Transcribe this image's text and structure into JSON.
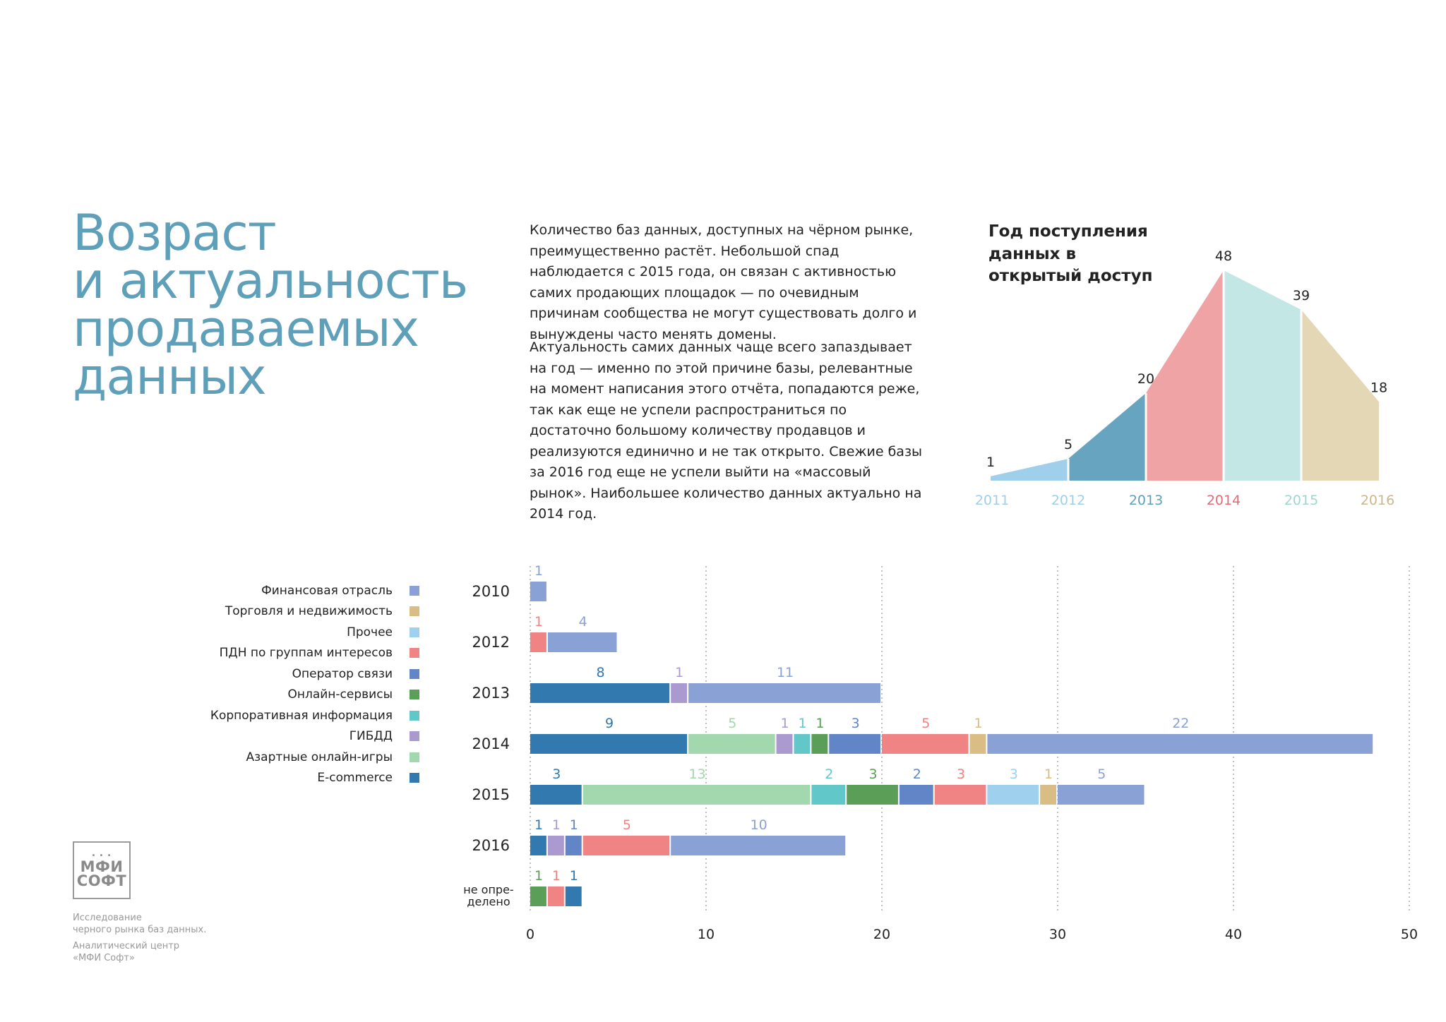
{
  "heading": {
    "line1": "Возраст",
    "line2": "и актуальность",
    "line3": "продаваемых",
    "line4": "данных"
  },
  "text": {
    "p1": "Количество баз данных, доступных на чёрном рынке, преимущественно растёт. Небольшой спад наблюдается с 2015 года, он связан с активностью самих продающих площадок — по очевидным причинам сообщества не могут существовать долго и вынуждены часто менять домены.",
    "p2": "Актуальность самих данных чаще всего запаздывает на год — именно по этой причине базы, релевантные на момент написания этого отчёта, попадаются реже, так как еще не успели распространиться по достаточно большому количеству продавцов и реализуются единично и не так открыто. Свежие базы за 2016 год еще не успели выйти на «массовый рынок». Наибольшее количество данных актуально на 2014 год."
  },
  "footer": {
    "logo_line1": "МФИ",
    "logo_line2": "СОФТ",
    "line1": "Исследование",
    "line2": "черного рынка баз данных.",
    "line3": "Аналитический центр",
    "line4": "«МФИ Софт»"
  },
  "chart_data": [
    {
      "type": "area",
      "title": "Год поступления данных в открытый доступ",
      "x": [
        "2011",
        "2012",
        "2013",
        "2014",
        "2015",
        "2016"
      ],
      "values": [
        1,
        5,
        20,
        48,
        39,
        18
      ],
      "colors": [
        "#9fcfea",
        "#66a4c0",
        "#f0a3a5",
        "#c3e7e5",
        "#e4d7b6"
      ],
      "label_colors": [
        "#9fcfea",
        "#9fcfea",
        "#5e9fba",
        "#e06c7a",
        "#9fd6cf",
        "#cbb78e"
      ],
      "grid": false
    },
    {
      "type": "bar",
      "orientation": "horizontal",
      "stacked": true,
      "categories": [
        "2010",
        "2012",
        "2013",
        "2014",
        "2015",
        "2016",
        "не опре-\nделено"
      ],
      "xlim": [
        0,
        50
      ],
      "xticks": [
        0,
        10,
        20,
        30,
        40,
        50
      ],
      "grid": true,
      "legend_position": "left",
      "legend": [
        {
          "name": "Финансовая отрасль",
          "color": "#8aa1d5"
        },
        {
          "name": "Торговля и недвижимость",
          "color": "#d9bd84"
        },
        {
          "name": "Прочее",
          "color": "#9fd0ee"
        },
        {
          "name": "ПДН по группам интересов",
          "color": "#f08383"
        },
        {
          "name": "Оператор связи",
          "color": "#6185c6"
        },
        {
          "name": "Онлайн-сервисы",
          "color": "#5b9e58"
        },
        {
          "name": "Корпоративная информация",
          "color": "#62c7c9"
        },
        {
          "name": "ГИБДД",
          "color": "#aa9ad0"
        },
        {
          "name": "Азартные онлайн-игры",
          "color": "#a3d7ad"
        },
        {
          "name": "E-commerce",
          "color": "#3279b0"
        }
      ],
      "rows": [
        {
          "segments": [
            {
              "series": "Финансовая отрасль",
              "value": 1
            }
          ]
        },
        {
          "segments": [
            {
              "series": "ПДН по группам интересов",
              "value": 1
            },
            {
              "series": "Финансовая отрасль",
              "value": 4
            }
          ]
        },
        {
          "segments": [
            {
              "series": "E-commerce",
              "value": 8
            },
            {
              "series": "ГИБДД",
              "value": 1
            },
            {
              "series": "Финансовая отрасль",
              "value": 11
            }
          ]
        },
        {
          "segments": [
            {
              "series": "E-commerce",
              "value": 9
            },
            {
              "series": "Азартные онлайн-игры",
              "value": 5
            },
            {
              "series": "ГИБДД",
              "value": 1
            },
            {
              "series": "Корпоративная информация",
              "value": 1
            },
            {
              "series": "Онлайн-сервисы",
              "value": 1
            },
            {
              "series": "Оператор связи",
              "value": 3
            },
            {
              "series": "ПДН по группам интересов",
              "value": 5
            },
            {
              "series": "Торговля и недвижимость",
              "value": 1
            },
            {
              "series": "Финансовая отрасль",
              "value": 22
            }
          ]
        },
        {
          "segments": [
            {
              "series": "E-commerce",
              "value": 3
            },
            {
              "series": "Азартные онлайн-игры",
              "value": 13
            },
            {
              "series": "Корпоративная информация",
              "value": 2
            },
            {
              "series": "Онлайн-сервисы",
              "value": 3
            },
            {
              "series": "Оператор связи",
              "value": 2
            },
            {
              "series": "ПДН по группам интересов",
              "value": 3
            },
            {
              "series": "Прочее",
              "value": 3
            },
            {
              "series": "Торговля и недвижимость",
              "value": 1
            },
            {
              "series": "Финансовая отрасль",
              "value": 5
            }
          ]
        },
        {
          "segments": [
            {
              "series": "E-commerce",
              "value": 1
            },
            {
              "series": "ГИБДД",
              "value": 1
            },
            {
              "series": "Оператор связи",
              "value": 1
            },
            {
              "series": "ПДН по группам интересов",
              "value": 5
            },
            {
              "series": "Финансовая отрасль",
              "value": 10
            }
          ]
        },
        {
          "segments": [
            {
              "series": "Онлайн-сервисы",
              "value": 1
            },
            {
              "series": "ПДН по группам интересов",
              "value": 1
            },
            {
              "series": "E-commerce",
              "value": 1
            }
          ]
        }
      ]
    }
  ]
}
